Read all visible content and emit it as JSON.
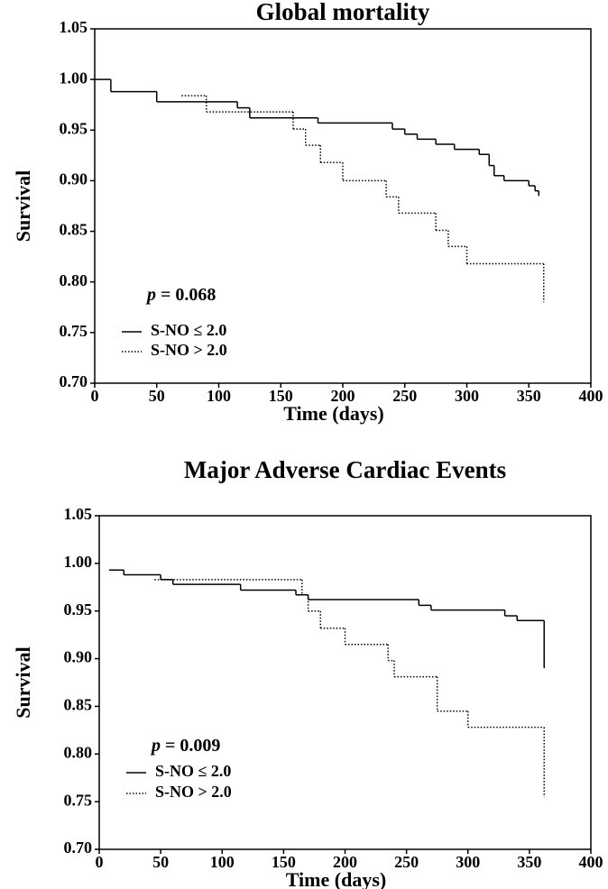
{
  "chart_data": [
    {
      "type": "step",
      "title": "Global mortality",
      "x_label": "Time (days)",
      "y_label": "Survival",
      "annotation_italic": "p",
      "annotation": "= 0.068",
      "xlim": [
        0,
        400
      ],
      "xticks": [
        0,
        50,
        100,
        150,
        200,
        250,
        300,
        350,
        400
      ],
      "ylim": [
        0.7,
        1.05
      ],
      "yticks": [
        {
          "value": 0.7,
          "label": "0.70"
        },
        0.75,
        {
          "value": 0.8,
          "label": "0.80"
        },
        0.85,
        {
          "value": 0.9,
          "label": "0.90"
        },
        0.95,
        {
          "value": 1,
          "label": "1.00"
        },
        1.05
      ],
      "series": [
        {
          "name": "S-NO ≤ 2.0",
          "color": "#000000",
          "style": "solid",
          "x": [
            0,
            13,
            50,
            115,
            125,
            180,
            240,
            250,
            260,
            275,
            290,
            310,
            318,
            322,
            330,
            350,
            355,
            358
          ],
          "values": [
            1.0,
            0.988,
            0.978,
            0.972,
            0.962,
            0.957,
            0.951,
            0.946,
            0.941,
            0.936,
            0.931,
            0.926,
            0.915,
            0.905,
            0.9,
            0.895,
            0.89,
            0.885
          ]
        },
        {
          "name": "S-NO > 2.0",
          "color": "#000000",
          "style": "dotted",
          "x": [
            70,
            90,
            160,
            170,
            182,
            200,
            235,
            245,
            275,
            285,
            300,
            362
          ],
          "values": [
            0.984,
            0.968,
            0.951,
            0.935,
            0.918,
            0.9,
            0.884,
            0.868,
            0.851,
            0.835,
            0.818,
            0.78
          ]
        }
      ]
    },
    {
      "type": "step",
      "title": "Major Adverse Cardiac Events",
      "x_label": "Time (days)",
      "y_label": "Survival",
      "annotation_italic": "p",
      "annotation": "= 0.009",
      "xlim": [
        0,
        400
      ],
      "xticks": [
        0,
        50,
        100,
        150,
        200,
        250,
        300,
        350,
        400
      ],
      "ylim": [
        0.7,
        1.05
      ],
      "yticks": [
        {
          "value": 0.7,
          "label": "0.70"
        },
        0.75,
        {
          "value": 0.8,
          "label": "0.80"
        },
        0.85,
        {
          "value": 0.9,
          "label": "0.90"
        },
        0.95,
        {
          "value": 1,
          "label": "1.00"
        },
        1.05
      ],
      "series": [
        {
          "name": "S-NO ≤ 2.0",
          "color": "#000000",
          "style": "solid",
          "x": [
            8,
            20,
            50,
            60,
            115,
            160,
            170,
            260,
            270,
            330,
            340,
            362
          ],
          "values": [
            0.993,
            0.988,
            0.983,
            0.978,
            0.972,
            0.967,
            0.962,
            0.956,
            0.951,
            0.945,
            0.94,
            0.89
          ]
        },
        {
          "name": "S-NO > 2.0",
          "color": "#000000",
          "style": "dotted",
          "x": [
            45,
            165,
            170,
            180,
            200,
            235,
            240,
            275,
            300,
            362
          ],
          "values": [
            0.983,
            0.967,
            0.95,
            0.932,
            0.915,
            0.898,
            0.881,
            0.845,
            0.828,
            0.755
          ]
        }
      ]
    }
  ]
}
